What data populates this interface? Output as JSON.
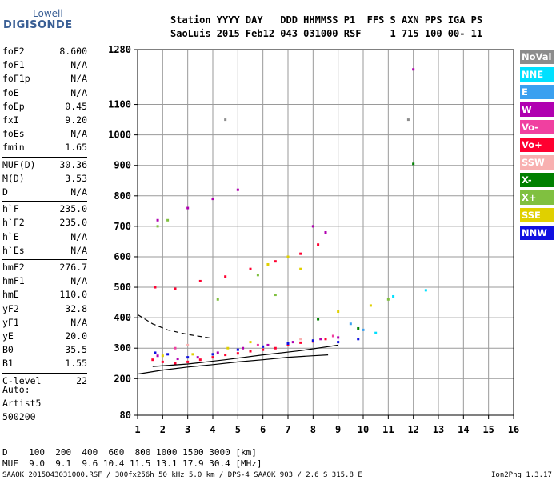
{
  "logo": {
    "line1": "Lowell",
    "line2": "DIGISONDE"
  },
  "header": {
    "line1": "Station YYYY DAY   DDD HHMMSS P1  FFS S AXN PPS IGA PS",
    "line2": "SaoLuis 2015 Feb12 043 031000 RSF     1 715 100 00- 11"
  },
  "params": [
    {
      "label": "foF2",
      "value": "8.600"
    },
    {
      "label": "foF1",
      "value": "N/A"
    },
    {
      "label": "foF1p",
      "value": "N/A"
    },
    {
      "label": "foE",
      "value": "N/A"
    },
    {
      "label": "foEp",
      "value": "0.45"
    },
    {
      "label": "fxI",
      "value": "9.20"
    },
    {
      "label": "foEs",
      "value": "N/A"
    },
    {
      "label": "fmin",
      "value": "1.65"
    },
    {
      "label": "MUF(D)",
      "value": "30.36"
    },
    {
      "label": "M(D)",
      "value": "3.53"
    },
    {
      "label": "D",
      "value": "N/A"
    },
    {
      "label": "h`F",
      "value": "235.0"
    },
    {
      "label": "h`F2",
      "value": "235.0"
    },
    {
      "label": "h`E",
      "value": "N/A"
    },
    {
      "label": "h`Es",
      "value": "N/A"
    },
    {
      "label": "hmF2",
      "value": "276.7"
    },
    {
      "label": "hmF1",
      "value": "N/A"
    },
    {
      "label": "hmE",
      "value": "110.0"
    },
    {
      "label": "yF2",
      "value": "32.8"
    },
    {
      "label": "yF1",
      "value": "N/A"
    },
    {
      "label": "yE",
      "value": "20.0"
    },
    {
      "label": "B0",
      "value": "35.5"
    },
    {
      "label": "B1",
      "value": "1.55"
    },
    {
      "label": "C-level",
      "value": "22"
    }
  ],
  "auto": {
    "line1": "Auto:",
    "line2": "Artist5",
    "line3": "500200"
  },
  "legend": [
    {
      "label": "NoVal",
      "color": "#8c8c8c"
    },
    {
      "label": "NNE",
      "color": "#00e0ff"
    },
    {
      "label": "E",
      "color": "#3aa0f0"
    },
    {
      "label": "W",
      "color": "#b000b0"
    },
    {
      "label": "Vo-",
      "color": "#f040a0"
    },
    {
      "label": "Vo+",
      "color": "#ff0030"
    },
    {
      "label": "SSW",
      "color": "#f8b0b0"
    },
    {
      "label": "X-",
      "color": "#008000"
    },
    {
      "label": "X+",
      "color": "#80c040"
    },
    {
      "label": "SSE",
      "color": "#e0d000"
    },
    {
      "label": "NNW",
      "color": "#1010e0"
    }
  ],
  "footer": {
    "line1": "D    100  200  400  600  800 1000 1500 3000 [km]",
    "line2": "MUF  9.0  9.1  9.6 10.4 11.5 13.1 17.9 30.4 [MHz]",
    "line3": "SAAOK_2015043031000.RSF / 300fx256h 50 kHz 5.0 km / DPS-4 SAAOK 903 / 2.6 S 315.8 E",
    "version": "Ion2Png 1.3.17"
  },
  "chart_data": {
    "type": "scatter",
    "xlim": [
      1,
      16
    ],
    "ylim": [
      80,
      1280
    ],
    "x_ticks": [
      1,
      2,
      3,
      4,
      5,
      6,
      7,
      8,
      9,
      10,
      11,
      12,
      13,
      14,
      15,
      16
    ],
    "y_ticks": [
      80,
      200,
      300,
      400,
      500,
      600,
      700,
      800,
      900,
      1000,
      1100,
      1280
    ],
    "grid": true,
    "series": [
      {
        "name": "Vo+",
        "points": [
          [
            1.6,
            262
          ],
          [
            2.0,
            255
          ],
          [
            2.5,
            250
          ],
          [
            3.0,
            255
          ],
          [
            3.5,
            262
          ],
          [
            4.0,
            270
          ],
          [
            4.5,
            278
          ],
          [
            5.0,
            283
          ],
          [
            5.5,
            290
          ],
          [
            6.0,
            295
          ],
          [
            6.5,
            300
          ],
          [
            7.0,
            310
          ],
          [
            7.5,
            318
          ],
          [
            8.0,
            322
          ],
          [
            8.5,
            330
          ],
          [
            1.7,
            500
          ],
          [
            2.5,
            495
          ],
          [
            3.5,
            520
          ],
          [
            4.5,
            535
          ],
          [
            5.5,
            560
          ],
          [
            6.5,
            585
          ],
          [
            7.5,
            610
          ],
          [
            8.2,
            640
          ]
        ]
      },
      {
        "name": "W",
        "points": [
          [
            1.8,
            275
          ],
          [
            2.6,
            265
          ],
          [
            3.4,
            270
          ],
          [
            4.2,
            285
          ],
          [
            5.2,
            300
          ],
          [
            6.2,
            310
          ],
          [
            7.2,
            320
          ],
          [
            8.3,
            330
          ],
          [
            9.0,
            335
          ],
          [
            1.8,
            720
          ],
          [
            3.0,
            760
          ],
          [
            4.0,
            790
          ],
          [
            5.0,
            820
          ],
          [
            8.0,
            700
          ],
          [
            8.5,
            680
          ],
          [
            12.0,
            1215
          ]
        ]
      },
      {
        "name": "NNW",
        "points": [
          [
            1.7,
            285
          ],
          [
            2.2,
            280
          ],
          [
            3.0,
            270
          ],
          [
            4.0,
            280
          ],
          [
            5.0,
            295
          ],
          [
            6.0,
            305
          ],
          [
            7.0,
            315
          ],
          [
            8.0,
            325
          ],
          [
            9.0,
            320
          ],
          [
            9.8,
            330
          ]
        ]
      },
      {
        "name": "SSE",
        "points": [
          [
            2.0,
            275
          ],
          [
            3.2,
            280
          ],
          [
            4.6,
            300
          ],
          [
            5.5,
            320
          ],
          [
            6.2,
            575
          ],
          [
            7.0,
            600
          ],
          [
            7.5,
            560
          ],
          [
            9.0,
            420
          ],
          [
            10.3,
            440
          ]
        ]
      },
      {
        "name": "X+",
        "points": [
          [
            1.8,
            700
          ],
          [
            2.2,
            720
          ],
          [
            4.2,
            460
          ],
          [
            5.8,
            540
          ],
          [
            6.5,
            475
          ],
          [
            11.0,
            460
          ]
        ]
      },
      {
        "name": "X-",
        "points": [
          [
            8.2,
            395
          ],
          [
            12.0,
            905
          ],
          [
            9.8,
            365
          ]
        ]
      },
      {
        "name": "NNE",
        "points": [
          [
            10.5,
            350
          ],
          [
            12.5,
            490
          ],
          [
            11.2,
            470
          ]
        ]
      },
      {
        "name": "E",
        "points": [
          [
            9.5,
            380
          ],
          [
            10.0,
            360
          ]
        ]
      },
      {
        "name": "Vo-",
        "points": [
          [
            2.5,
            300
          ],
          [
            5.8,
            310
          ],
          [
            8.8,
            340
          ]
        ]
      },
      {
        "name": "SSW",
        "points": [
          [
            3.0,
            310
          ],
          [
            7.5,
            330
          ]
        ]
      },
      {
        "name": "NoVal",
        "points": [
          [
            4.5,
            1050
          ],
          [
            11.8,
            1050
          ]
        ]
      }
    ],
    "curves": [
      {
        "name": "",
        "style": "solid",
        "points": [
          [
            1.0,
            215
          ],
          [
            2.0,
            228
          ],
          [
            3.0,
            238
          ],
          [
            4.0,
            246
          ],
          [
            5.0,
            255
          ],
          [
            6.0,
            262
          ],
          [
            7.0,
            270
          ],
          [
            8.0,
            275
          ],
          [
            8.6,
            278
          ]
        ]
      },
      {
        "name": "",
        "style": "solid",
        "points": [
          [
            1.6,
            240
          ],
          [
            3.0,
            248
          ],
          [
            4.5,
            262
          ],
          [
            6.0,
            278
          ],
          [
            7.5,
            292
          ],
          [
            8.6,
            305
          ],
          [
            9.0,
            310
          ]
        ]
      },
      {
        "name": "",
        "style": "dashed",
        "points": [
          [
            1.0,
            410
          ],
          [
            1.6,
            380
          ],
          [
            2.2,
            360
          ],
          [
            3.0,
            345
          ],
          [
            4.0,
            332
          ]
        ]
      }
    ]
  }
}
